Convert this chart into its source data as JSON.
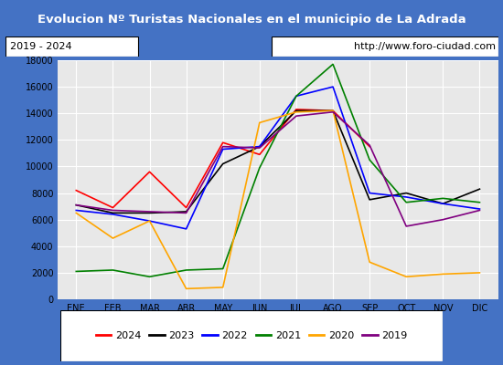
{
  "title": "Evolucion Nº Turistas Nacionales en el municipio de La Adrada",
  "subtitle_left": "2019 - 2024",
  "subtitle_right": "http://www.foro-ciudad.com",
  "title_bg": "#4472c4",
  "title_color": "white",
  "months": [
    "ENE",
    "FEB",
    "MAR",
    "ABR",
    "MAY",
    "JUN",
    "JUL",
    "AGO",
    "SEP",
    "OCT",
    "NOV",
    "DIC"
  ],
  "ylim": [
    0,
    18000
  ],
  "yticks": [
    0,
    2000,
    4000,
    6000,
    8000,
    10000,
    12000,
    14000,
    16000,
    18000
  ],
  "series": {
    "2024": {
      "color": "red",
      "data": [
        8200,
        6900,
        9600,
        6900,
        11800,
        10900,
        14300,
        14200,
        11500,
        null,
        null,
        null
      ]
    },
    "2023": {
      "color": "black",
      "data": [
        7100,
        6500,
        6500,
        6600,
        10200,
        11500,
        14200,
        14200,
        7500,
        8000,
        7200,
        8300
      ]
    },
    "2022": {
      "color": "blue",
      "data": [
        6700,
        6400,
        5900,
        5300,
        11300,
        11500,
        15300,
        16000,
        8000,
        7700,
        7200,
        6800
      ]
    },
    "2021": {
      "color": "green",
      "data": [
        2100,
        2200,
        1700,
        2200,
        2300,
        9900,
        15300,
        17700,
        10500,
        7300,
        7600,
        7300
      ]
    },
    "2020": {
      "color": "orange",
      "data": [
        6500,
        4600,
        5900,
        800,
        900,
        13300,
        14100,
        14200,
        2800,
        1700,
        1900,
        2000
      ]
    },
    "2019": {
      "color": "purple",
      "data": [
        7100,
        6700,
        6600,
        6500,
        11500,
        11400,
        13800,
        14100,
        11600,
        5500,
        6000,
        6700
      ]
    }
  },
  "legend_order": [
    "2024",
    "2023",
    "2022",
    "2021",
    "2020",
    "2019"
  ],
  "plot_bg": "#e8e8e8",
  "grid_color": "white"
}
